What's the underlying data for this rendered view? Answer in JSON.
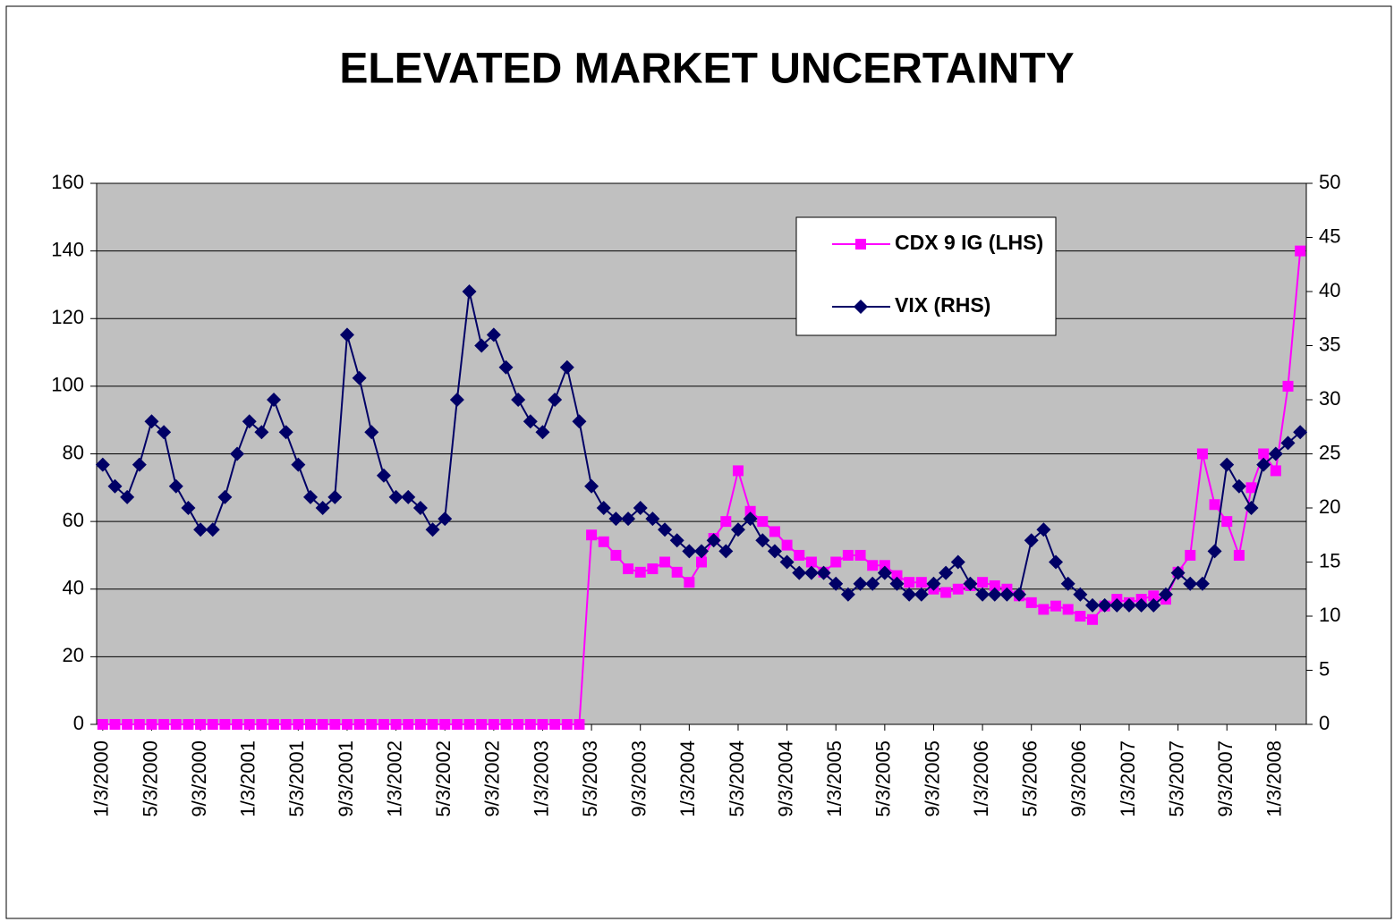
{
  "chart_data": {
    "type": "line",
    "title": "ELEVATED MARKET UNCERTAINTY",
    "categories": [
      "1/3/2000",
      null,
      null,
      null,
      "5/3/2000",
      null,
      null,
      null,
      "9/3/2000",
      null,
      null,
      null,
      "1/3/2001",
      null,
      null,
      null,
      "5/3/2001",
      null,
      null,
      null,
      "9/3/2001",
      null,
      null,
      null,
      "1/3/2002",
      null,
      null,
      null,
      "5/3/2002",
      null,
      null,
      null,
      "9/3/2002",
      null,
      null,
      null,
      "1/3/2003",
      null,
      null,
      null,
      "5/3/2003",
      null,
      null,
      null,
      "9/3/2003",
      null,
      null,
      null,
      "1/3/2004",
      null,
      null,
      null,
      "5/3/2004",
      null,
      null,
      null,
      "9/3/2004",
      null,
      null,
      null,
      "1/3/2005",
      null,
      null,
      null,
      "5/3/2005",
      null,
      null,
      null,
      "9/3/2005",
      null,
      null,
      null,
      "1/3/2006",
      null,
      null,
      null,
      "5/3/2006",
      null,
      null,
      null,
      "9/3/2006",
      null,
      null,
      null,
      "1/3/2007",
      null,
      null,
      null,
      "5/3/2007",
      null,
      null,
      null,
      "9/3/2007",
      null,
      null,
      null,
      "1/3/2008",
      null,
      null
    ],
    "series": [
      {
        "name": "CDX 9 IG (LHS)",
        "color": "#ff00ff",
        "marker": "square",
        "axis": "y",
        "values": [
          0,
          0,
          0,
          0,
          0,
          0,
          0,
          0,
          0,
          0,
          0,
          0,
          0,
          0,
          0,
          0,
          0,
          0,
          0,
          0,
          0,
          0,
          0,
          0,
          0,
          0,
          0,
          0,
          0,
          0,
          0,
          0,
          0,
          0,
          0,
          0,
          0,
          0,
          0,
          0,
          56,
          54,
          50,
          46,
          45,
          46,
          48,
          45,
          42,
          48,
          55,
          60,
          75,
          63,
          60,
          57,
          53,
          50,
          48,
          45,
          48,
          50,
          50,
          47,
          47,
          44,
          42,
          42,
          40,
          39,
          40,
          41,
          42,
          41,
          40,
          38,
          36,
          34,
          35,
          34,
          32,
          31,
          35,
          37,
          36,
          37,
          38,
          37,
          45,
          50,
          80,
          65,
          60,
          50,
          70,
          80,
          75,
          100,
          140
        ]
      },
      {
        "name": "VIX (RHS)",
        "color": "#000066",
        "marker": "diamond",
        "axis": "y2",
        "values": [
          24,
          22,
          21,
          24,
          28,
          27,
          22,
          20,
          18,
          18,
          21,
          25,
          28,
          27,
          30,
          27,
          24,
          21,
          20,
          21,
          36,
          32,
          27,
          23,
          21,
          21,
          20,
          18,
          19,
          30,
          40,
          35,
          36,
          33,
          30,
          28,
          27,
          30,
          33,
          28,
          22,
          20,
          19,
          19,
          20,
          19,
          18,
          17,
          16,
          16,
          17,
          16,
          18,
          19,
          17,
          16,
          15,
          14,
          14,
          14,
          13,
          12,
          13,
          13,
          14,
          13,
          12,
          12,
          13,
          14,
          15,
          13,
          12,
          12,
          12,
          12,
          17,
          18,
          15,
          13,
          12,
          11,
          11,
          11,
          11,
          11,
          11,
          12,
          14,
          13,
          13,
          16,
          24,
          22,
          20,
          24,
          25,
          26,
          27
        ]
      }
    ],
    "ylim": [
      0,
      160
    ],
    "yticks": [
      0,
      20,
      40,
      60,
      80,
      100,
      120,
      140,
      160
    ],
    "y2lim": [
      0,
      50
    ],
    "y2ticks": [
      0,
      5,
      10,
      15,
      20,
      25,
      30,
      35,
      40,
      45,
      50
    ],
    "grid": true,
    "plot_background": "#c0c0c0",
    "legend": "upper right"
  }
}
